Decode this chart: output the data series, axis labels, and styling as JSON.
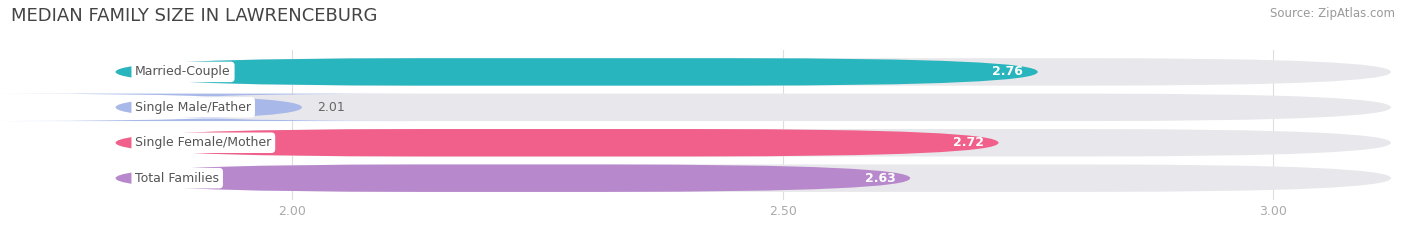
{
  "title": "MEDIAN FAMILY SIZE IN LAWRENCEBURG",
  "source": "Source: ZipAtlas.com",
  "categories": [
    "Married-Couple",
    "Single Male/Father",
    "Single Female/Mother",
    "Total Families"
  ],
  "values": [
    2.76,
    2.01,
    2.72,
    2.63
  ],
  "bar_colors": [
    "#29b5be",
    "#a8b8e8",
    "#f0608a",
    "#b888cc"
  ],
  "bar_bg_color": "#e8e8ec",
  "xlim_min": 1.82,
  "xlim_max": 3.12,
  "xticks": [
    2.0,
    2.5,
    3.0
  ],
  "figsize": [
    14.06,
    2.33
  ],
  "dpi": 100,
  "title_fontsize": 13,
  "label_fontsize": 9,
  "value_fontsize": 9,
  "source_fontsize": 8.5,
  "bg_color": "#ffffff",
  "label_text_color": "#555555",
  "value_color_on_bar": "#ffffff",
  "value_color_off_bar": "#666666",
  "source_color": "#999999",
  "title_color": "#444444",
  "tick_color": "#aaaaaa",
  "grid_color": "#dddddd"
}
